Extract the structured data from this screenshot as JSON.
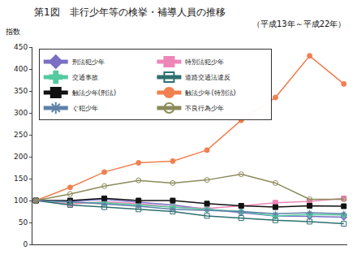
{
  "chart_data": {
    "type": "line",
    "title": "第1図　非行少年等の検挙・補導人員の推移",
    "subtitle": "（平成13年～平成22年）",
    "y_label": "指数",
    "categories": [
      null,
      null,
      null,
      null,
      null,
      null,
      null,
      null,
      null,
      null
    ],
    "ylim": [
      0,
      450
    ],
    "yticks": [
      0,
      50,
      100,
      150,
      200,
      250,
      300,
      350,
      400,
      450
    ],
    "grid": false,
    "legend": "top-left",
    "tick_labels": "y",
    "series": [
      {
        "name": "刑法犯少年",
        "color": "#7a6fc4",
        "marker": "diamond",
        "values": [
          100,
          98,
          103,
          96,
          90,
          80,
          72,
          65,
          64,
          62
        ]
      },
      {
        "name": "特別法犯少年",
        "color": "#ee86b8",
        "marker": "square",
        "values": [
          100,
          92,
          97,
          93,
          85,
          82,
          88,
          95,
          98,
          105
        ]
      },
      {
        "name": "交通事故",
        "color": "#55c9a0",
        "marker": "cross",
        "values": [
          100,
          96,
          95,
          90,
          85,
          80,
          75,
          65,
          68,
          67
        ]
      },
      {
        "name": "道路交通法違反",
        "color": "#2f6f6f",
        "marker": "square-open",
        "values": [
          100,
          90,
          85,
          80,
          75,
          65,
          60,
          55,
          52,
          47
        ]
      },
      {
        "name": "触法少年(刑法)",
        "color": "#111111",
        "marker": "square",
        "values": [
          100,
          100,
          105,
          100,
          100,
          93,
          88,
          85,
          88,
          87
        ]
      },
      {
        "name": "触法少年(特別法)",
        "color": "#f08050",
        "marker": "circle",
        "values": [
          100,
          130,
          165,
          186,
          190,
          215,
          283,
          335,
          430,
          366
        ]
      },
      {
        "name": "ぐ犯少年",
        "color": "#6080a8",
        "marker": "asterisk-open",
        "values": [
          100,
          97,
          92,
          87,
          80,
          78,
          75,
          70,
          72,
          70
        ]
      },
      {
        "name": "不良行為少年",
        "color": "#8b8b5a",
        "marker": "circle-open",
        "values": [
          100,
          115,
          133,
          146,
          140,
          147,
          160,
          140,
          103,
          103
        ]
      }
    ]
  }
}
